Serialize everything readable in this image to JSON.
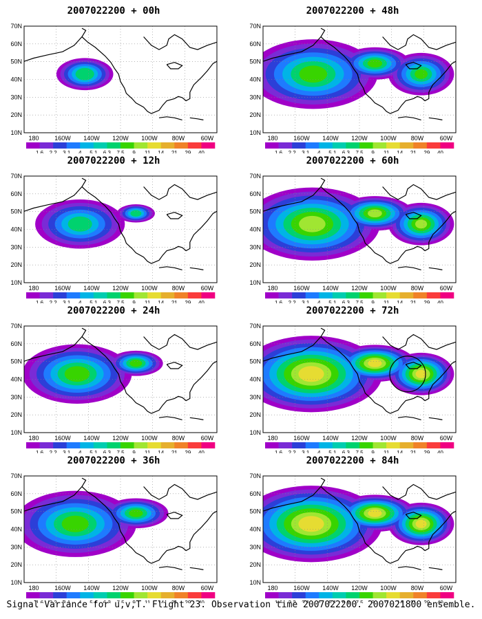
{
  "panels": [
    {
      "id": "p00",
      "title": "2007022200 + 00h",
      "intensity": 0.25,
      "extent": 0.35
    },
    {
      "id": "p48",
      "title": "2007022200 + 48h",
      "intensity": 0.55,
      "extent": 0.9
    },
    {
      "id": "p12",
      "title": "2007022200 + 12h",
      "intensity": 0.35,
      "extent": 0.6
    },
    {
      "id": "p60",
      "title": "2007022200 + 60h",
      "intensity": 0.65,
      "extent": 0.95
    },
    {
      "id": "p24",
      "title": "2007022200 + 24h",
      "intensity": 0.45,
      "extent": 0.75
    },
    {
      "id": "p72",
      "title": "2007022200 + 72h",
      "intensity": 0.75,
      "extent": 1.0,
      "circle": true
    },
    {
      "id": "p36",
      "title": "2007022200 + 36h",
      "intensity": 0.5,
      "extent": 0.85
    },
    {
      "id": "p84",
      "title": "2007022200 + 84h",
      "intensity": 0.85,
      "extent": 1.0
    }
  ],
  "axes": {
    "lat_labels": [
      "70N",
      "60N",
      "50N",
      "40N",
      "30N",
      "20N",
      "10N"
    ],
    "lon_labels": [
      "180",
      "160W",
      "140W",
      "120W",
      "100W",
      "80W",
      "60W"
    ]
  },
  "colorbar": {
    "values": [
      "1.6",
      "2.2",
      "3.1",
      "4",
      "5.1",
      "6.3",
      "7.5",
      "9",
      "11",
      "14",
      "21",
      "29",
      "40"
    ],
    "colors": [
      "#a000c8",
      "#7a2bd6",
      "#2c3fd8",
      "#1e7bff",
      "#00b4e6",
      "#00cdb0",
      "#00d26e",
      "#38d400",
      "#a0e632",
      "#e6dc32",
      "#e6af2d",
      "#f08228",
      "#fa3c3c",
      "#f00082"
    ]
  },
  "caption": "Signal Variance for u,v,T. Flight 23. Observation time 2007022200. 2007021800 ensemble."
}
